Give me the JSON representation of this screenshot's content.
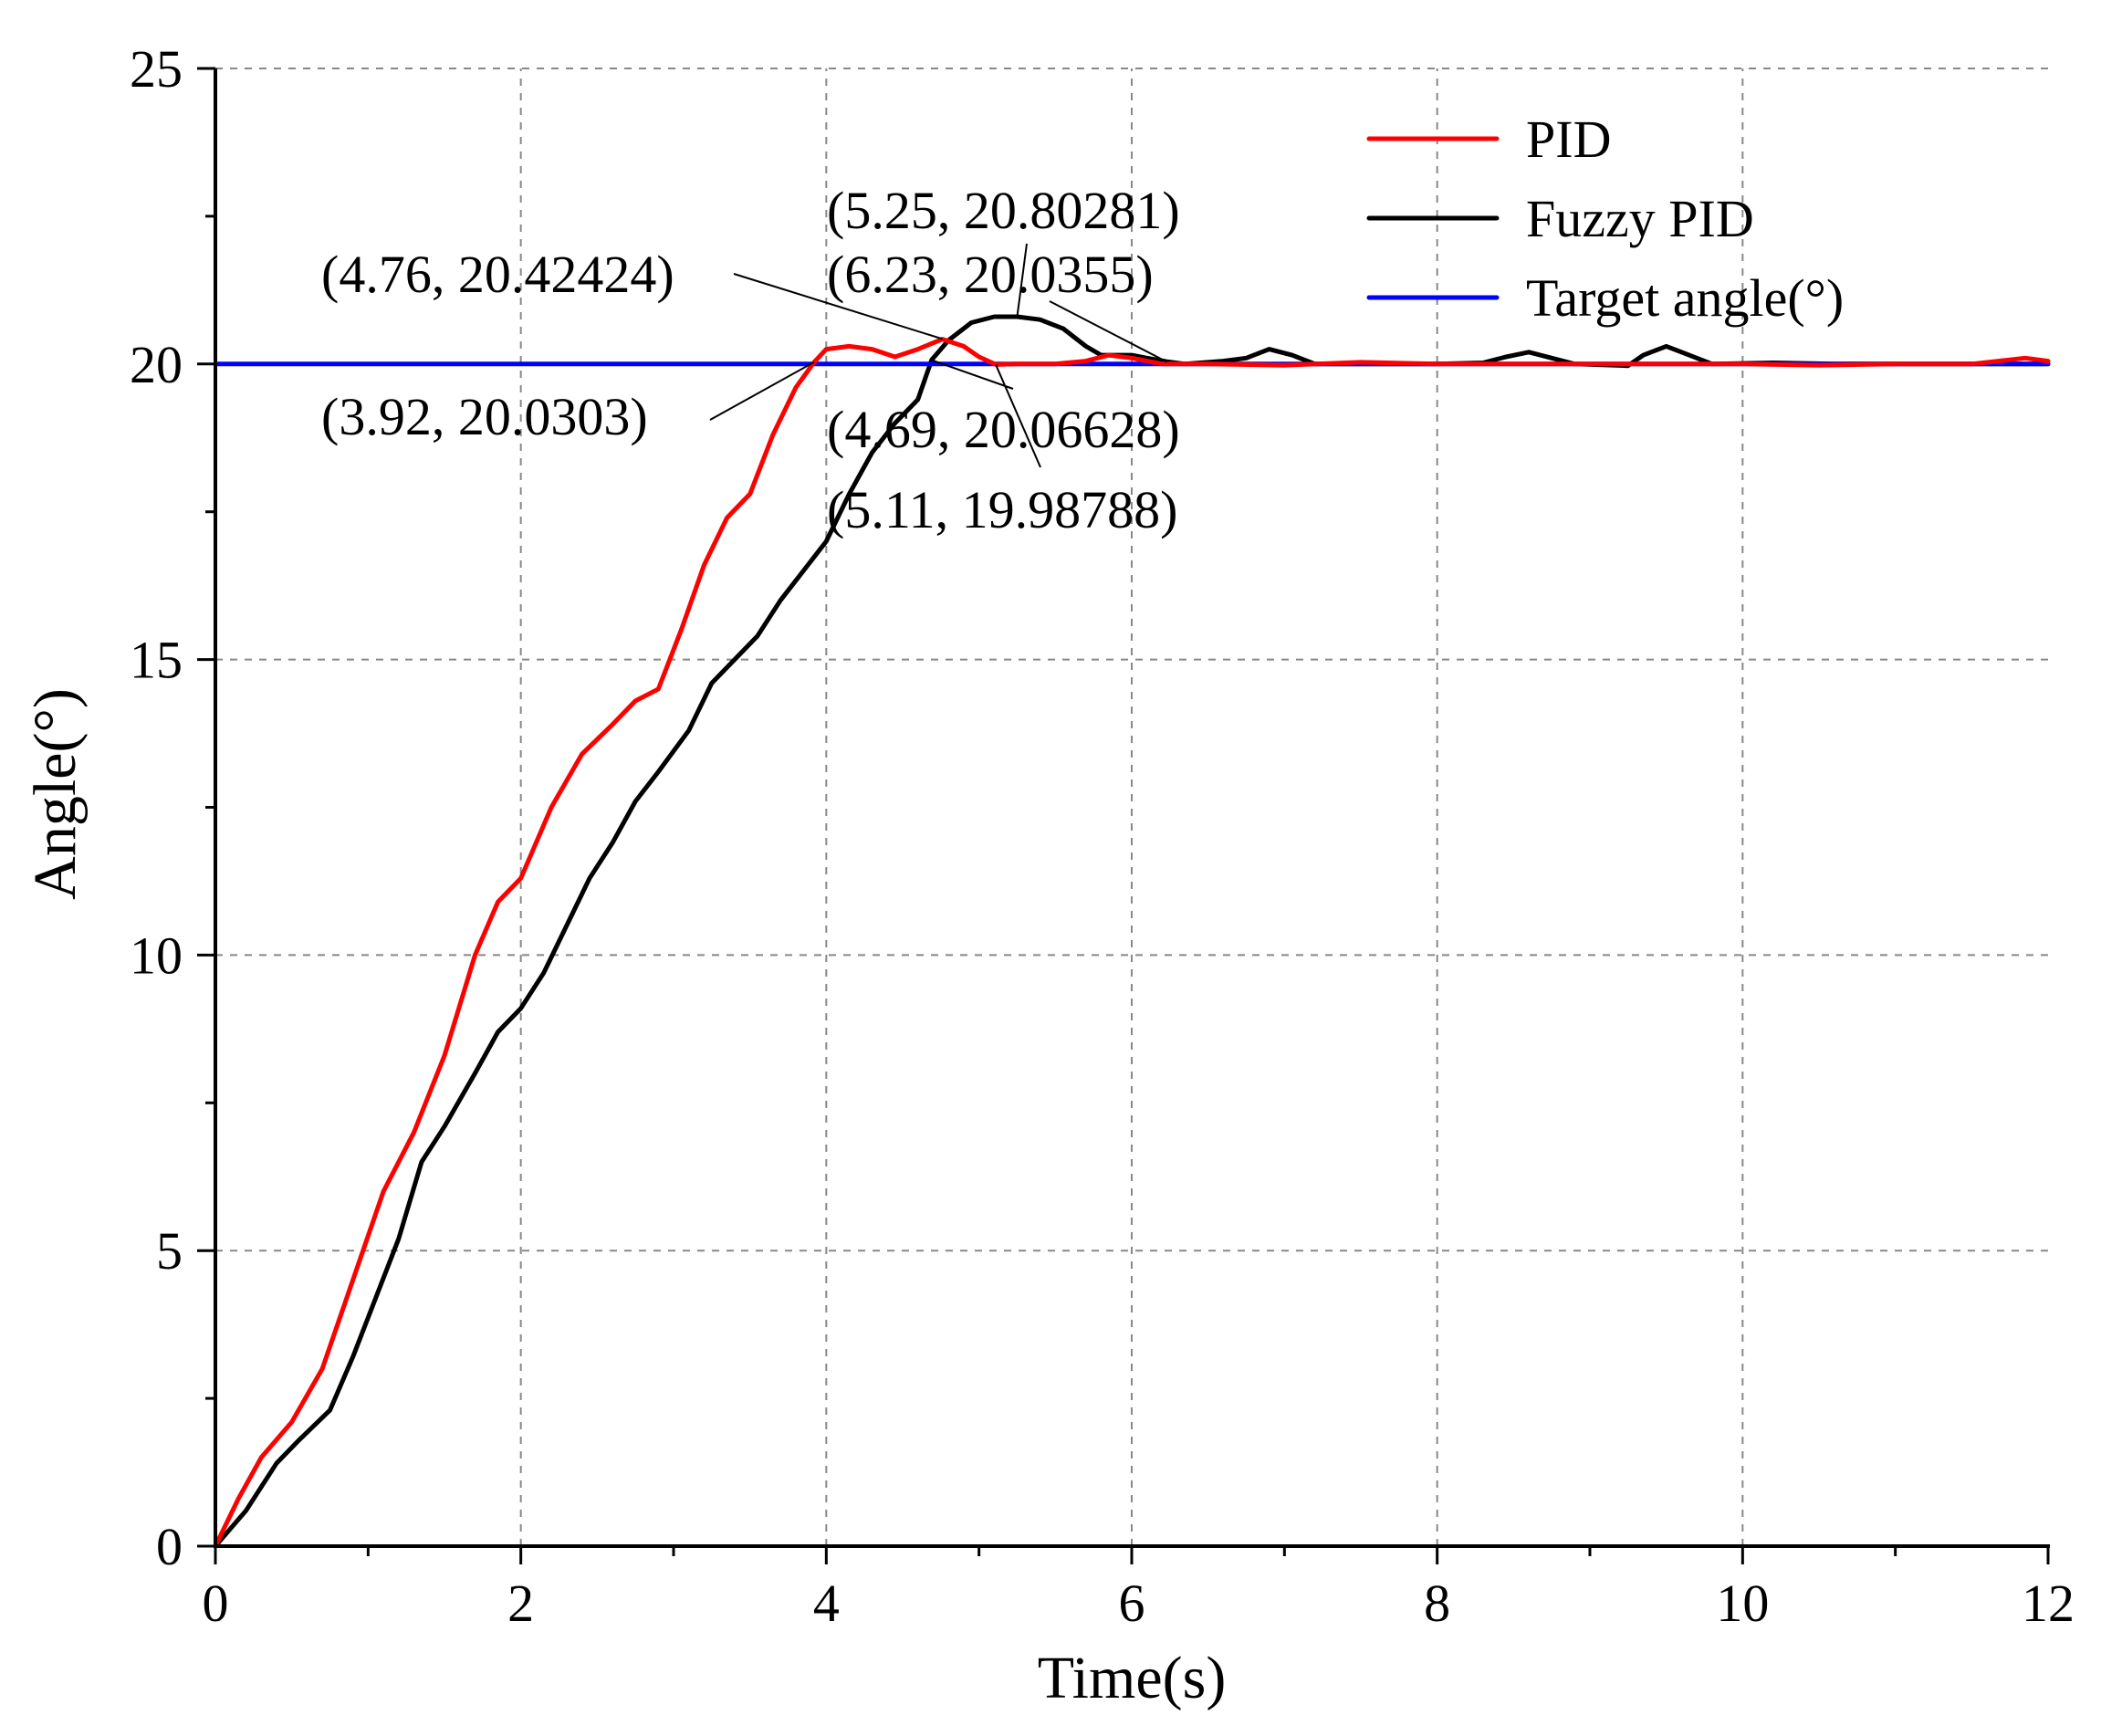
{
  "chart_data": {
    "type": "line",
    "title": "",
    "xlabel": "Time(s)",
    "ylabel": "Angle(°)",
    "xlim": [
      0,
      12
    ],
    "ylim": [
      0,
      25
    ],
    "xticks": [
      0,
      2,
      4,
      6,
      8,
      10,
      12
    ],
    "xtick_labels": [
      "0",
      "2",
      "4",
      "6",
      "8",
      "10",
      "12"
    ],
    "yticks": [
      0,
      5,
      10,
      15,
      20,
      25
    ],
    "ytick_labels": [
      "0",
      "5",
      "10",
      "15",
      "20",
      "25"
    ],
    "x_minor_step": 1,
    "y_minor_step": 2.5,
    "grid": true,
    "legend_position": "top-right",
    "series": [
      {
        "name": "PID",
        "color": "#ff0000",
        "points": [
          [
            0,
            0
          ],
          [
            0.15,
            0.8
          ],
          [
            0.3,
            1.5
          ],
          [
            0.5,
            2.1
          ],
          [
            0.7,
            3.0
          ],
          [
            0.9,
            4.5
          ],
          [
            1.1,
            6.0
          ],
          [
            1.3,
            7.0
          ],
          [
            1.5,
            8.3
          ],
          [
            1.7,
            10.0
          ],
          [
            1.85,
            10.9
          ],
          [
            2.0,
            11.3
          ],
          [
            2.2,
            12.5
          ],
          [
            2.4,
            13.4
          ],
          [
            2.6,
            13.9
          ],
          [
            2.75,
            14.3
          ],
          [
            2.9,
            14.5
          ],
          [
            3.05,
            15.5
          ],
          [
            3.2,
            16.6
          ],
          [
            3.35,
            17.4
          ],
          [
            3.5,
            17.8
          ],
          [
            3.65,
            18.8
          ],
          [
            3.8,
            19.6
          ],
          [
            3.92,
            20.03
          ],
          [
            4.0,
            20.25
          ],
          [
            4.15,
            20.3
          ],
          [
            4.3,
            20.25
          ],
          [
            4.45,
            20.12
          ],
          [
            4.6,
            20.25
          ],
          [
            4.76,
            20.42
          ],
          [
            4.9,
            20.3
          ],
          [
            5.0,
            20.12
          ],
          [
            5.11,
            19.99
          ],
          [
            5.25,
            20.0
          ],
          [
            5.5,
            20.0
          ],
          [
            5.7,
            20.05
          ],
          [
            5.85,
            20.15
          ],
          [
            6.0,
            20.1
          ],
          [
            6.2,
            20.0
          ],
          [
            6.5,
            20.0
          ],
          [
            7.0,
            19.98
          ],
          [
            7.5,
            20.03
          ],
          [
            8.0,
            20.0
          ],
          [
            8.5,
            20.0
          ],
          [
            9.0,
            20.0
          ],
          [
            9.5,
            20.0
          ],
          [
            10.0,
            20.0
          ],
          [
            10.5,
            19.98
          ],
          [
            11.0,
            20.0
          ],
          [
            11.5,
            20.0
          ],
          [
            11.85,
            20.1
          ],
          [
            12.0,
            20.05
          ]
        ]
      },
      {
        "name": "Fuzzy PID",
        "color": "#000000",
        "points": [
          [
            0,
            0
          ],
          [
            0.2,
            0.6
          ],
          [
            0.4,
            1.4
          ],
          [
            0.55,
            1.8
          ],
          [
            0.75,
            2.3
          ],
          [
            0.9,
            3.2
          ],
          [
            1.05,
            4.2
          ],
          [
            1.2,
            5.2
          ],
          [
            1.35,
            6.5
          ],
          [
            1.5,
            7.1
          ],
          [
            1.7,
            8.0
          ],
          [
            1.85,
            8.7
          ],
          [
            2.0,
            9.1
          ],
          [
            2.15,
            9.7
          ],
          [
            2.3,
            10.5
          ],
          [
            2.45,
            11.3
          ],
          [
            2.6,
            11.9
          ],
          [
            2.75,
            12.6
          ],
          [
            2.9,
            13.1
          ],
          [
            3.1,
            13.8
          ],
          [
            3.25,
            14.6
          ],
          [
            3.4,
            15.0
          ],
          [
            3.55,
            15.4
          ],
          [
            3.7,
            16.0
          ],
          [
            3.85,
            16.5
          ],
          [
            4.0,
            17.0
          ],
          [
            4.15,
            17.8
          ],
          [
            4.3,
            18.5
          ],
          [
            4.45,
            19.0
          ],
          [
            4.6,
            19.4
          ],
          [
            4.69,
            20.07
          ],
          [
            4.8,
            20.4
          ],
          [
            4.95,
            20.7
          ],
          [
            5.1,
            20.8
          ],
          [
            5.25,
            20.8
          ],
          [
            5.4,
            20.75
          ],
          [
            5.55,
            20.6
          ],
          [
            5.7,
            20.3
          ],
          [
            5.8,
            20.15
          ],
          [
            6.0,
            20.15
          ],
          [
            6.1,
            20.1
          ],
          [
            6.23,
            20.04
          ],
          [
            6.35,
            20.0
          ],
          [
            6.6,
            20.05
          ],
          [
            6.75,
            20.1
          ],
          [
            6.9,
            20.25
          ],
          [
            7.05,
            20.15
          ],
          [
            7.2,
            20.0
          ],
          [
            7.5,
            20.0
          ],
          [
            8.0,
            20.0
          ],
          [
            8.3,
            20.02
          ],
          [
            8.45,
            20.12
          ],
          [
            8.6,
            20.2
          ],
          [
            8.75,
            20.1
          ],
          [
            8.9,
            20.0
          ],
          [
            9.25,
            19.97
          ],
          [
            9.35,
            20.15
          ],
          [
            9.5,
            20.3
          ],
          [
            9.65,
            20.15
          ],
          [
            9.8,
            20.0
          ],
          [
            10.2,
            20.02
          ],
          [
            10.6,
            20.0
          ],
          [
            11.0,
            20.0
          ],
          [
            11.5,
            20.0
          ],
          [
            12.0,
            20.0
          ]
        ]
      },
      {
        "name": "Target angle(°)",
        "color": "#0000ff",
        "points": [
          [
            0,
            20
          ],
          [
            12,
            20
          ]
        ]
      }
    ],
    "annotations": [
      {
        "label": "(5.25, 20.80281)",
        "x": 5.25,
        "y": 20.80281
      },
      {
        "label": "(6.23, 20.0355)",
        "x": 6.23,
        "y": 20.0355
      },
      {
        "label": "(4.76, 20.42424)",
        "x": 4.76,
        "y": 20.42424
      },
      {
        "label": "(3.92, 20.0303)",
        "x": 3.92,
        "y": 20.0303
      },
      {
        "label": "(4.69, 20.06628)",
        "x": 4.69,
        "y": 20.06628
      },
      {
        "label": "(5.11, 19.98788)",
        "x": 5.11,
        "y": 19.98788
      }
    ]
  }
}
